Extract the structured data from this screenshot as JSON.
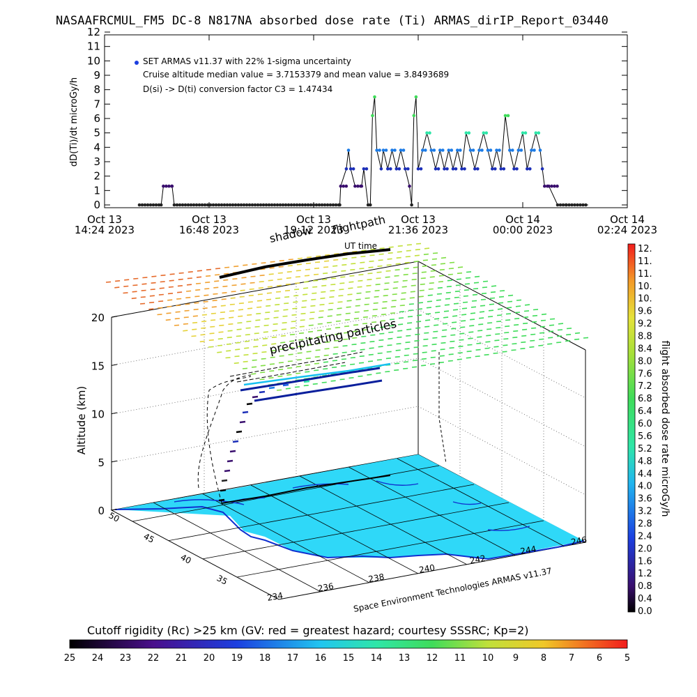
{
  "header": {
    "title": "NASAAFRCMUL_FM5 DC-8   N817NA absorbed dose rate (Ti) ARMAS_dirIP_Report_03440"
  },
  "top_plot": {
    "ylabel": "dD(Ti)/dt microGy/h",
    "xlabel": "UT time",
    "legend_lines": [
      "SET ARMAS v11.37 with 22% 1-sigma uncertainty",
      "Cruise altitude median value = 3.7153379 and mean value = 3.8493689",
      "D(si) -> D(ti) conversion factor C3 = 1.47434"
    ],
    "y_ticks": [
      "0",
      "1",
      "2",
      "3",
      "4",
      "5",
      "6",
      "7",
      "8",
      "9",
      "10",
      "11",
      "12"
    ],
    "x_ticks": [
      {
        "l1": "Oct 13",
        "l2": "14:24 2023"
      },
      {
        "l1": "Oct 13",
        "l2": "16:48 2023"
      },
      {
        "l1": "Oct 13",
        "l2": "19:12 2023"
      },
      {
        "l1": "Oct 13",
        "l2": "21:36 2023"
      },
      {
        "l1": "Oct 14",
        "l2": "00:00 2023"
      },
      {
        "l1": "Oct 14",
        "l2": "02:24 2023"
      }
    ]
  },
  "scene": {
    "shadow_label": "shadow",
    "flightpath_label": "flightpath",
    "precip_label": "precipitating particles",
    "altitude_label": "Altitude (km)",
    "alt_ticks": [
      "0",
      "5",
      "10",
      "15",
      "20"
    ],
    "lat_ticks": [
      "50",
      "45",
      "40",
      "35"
    ],
    "lon_ticks": [
      "234",
      "236",
      "238",
      "240",
      "242",
      "244",
      "246"
    ],
    "credit": "Space Environment Technologies ARMAS v11.37"
  },
  "dose_colorbar": {
    "label": "flight absorbed dose rate microGy/h",
    "ticks": [
      "12.",
      "11.",
      "11.",
      "10.",
      "10.",
      "9.6",
      "9.2",
      "8.8",
      "8.4",
      "8.0",
      "7.6",
      "7.2",
      "6.8",
      "6.4",
      "6.0",
      "5.6",
      "5.2",
      "4.8",
      "4.4",
      "4.0",
      "3.6",
      "3.2",
      "2.8",
      "2.4",
      "2.0",
      "1.6",
      "1.2",
      "0.8",
      "0.4",
      "0.0"
    ]
  },
  "rc_colorbar": {
    "title": "Cutoff rigidity (Rc) >25 km (GV: red = greatest hazard; courtesy SSSRC; Kp=2)",
    "ticks": [
      "25",
      "24",
      "23",
      "22",
      "21",
      "20",
      "19",
      "18",
      "17",
      "16",
      "15",
      "14",
      "13",
      "12",
      "11",
      "10",
      "9",
      "8",
      "7",
      "6",
      "5"
    ]
  },
  "colors": {
    "ocean": "#2fd8f8",
    "coast": "#1030d0",
    "dose_low": "#3a0f6e",
    "dose_mid": "#1c63e6",
    "dose_high": "#2fe6a8",
    "dose_peak": "#3fdc5a"
  },
  "chart_data": {
    "type": "line",
    "xlabel": "UT time",
    "ylabel": "dD(Ti)/dt microGy/h",
    "ylim": [
      0,
      12
    ],
    "xlim": [
      "Oct 13 14:24 2023",
      "Oct 14 02:24 2023"
    ],
    "legend_position": "top-left",
    "series": [
      {
        "name": "SET ARMAS v11.37 with 22% 1-sigma uncertainty",
        "x_hours_utc": [
          15.2,
          15.7,
          15.75,
          15.95,
          16.0,
          19.8,
          19.82,
          19.95,
          20.0,
          20.05,
          20.15,
          20.3,
          20.35,
          20.45,
          20.5,
          20.55,
          20.6,
          20.65,
          20.75,
          20.8,
          20.9,
          21.0,
          21.1,
          21.2,
          21.3,
          21.4,
          21.45,
          21.5,
          21.55,
          21.6,
          21.7,
          21.8,
          21.9,
          22.0,
          22.1,
          22.2,
          22.3,
          22.4,
          22.5,
          22.6,
          22.7,
          22.8,
          22.9,
          23.0,
          23.1,
          23.2,
          23.3,
          23.4,
          23.5,
          23.6,
          23.7,
          23.8,
          23.9,
          24.0,
          24.1,
          24.2,
          24.3,
          24.4,
          24.45,
          24.5,
          24.6,
          24.8,
          25.0,
          25.5
        ],
        "y": [
          0.0,
          0.0,
          1.3,
          1.3,
          0.0,
          0.0,
          1.3,
          2.5,
          3.8,
          2.5,
          1.3,
          1.3,
          2.5,
          0.0,
          0.0,
          6.2,
          7.5,
          3.8,
          2.5,
          3.8,
          2.5,
          3.8,
          2.5,
          3.8,
          2.5,
          1.3,
          0.0,
          6.2,
          7.5,
          2.5,
          3.8,
          5.0,
          3.8,
          2.5,
          3.8,
          2.5,
          3.8,
          2.5,
          3.8,
          2.5,
          5.0,
          3.8,
          2.5,
          3.8,
          5.0,
          3.8,
          2.5,
          3.8,
          2.5,
          6.2,
          3.8,
          2.5,
          3.8,
          5.0,
          2.5,
          3.8,
          5.0,
          3.8,
          2.5,
          1.3,
          1.3,
          0.0,
          0.0,
          0.0
        ]
      }
    ]
  }
}
